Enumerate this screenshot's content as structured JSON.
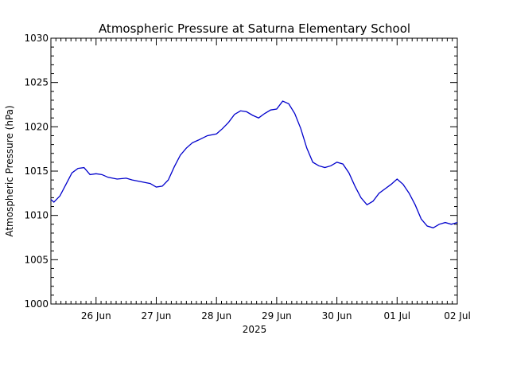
{
  "chart_data": {
    "type": "line",
    "title": "Atmospheric Pressure at Saturna Elementary School",
    "ylabel": "Atmospheric Pressure (hPa)",
    "xlabel": "2025",
    "ylim": [
      1000,
      1030
    ],
    "xlim_days": [
      -0.75,
      6.0
    ],
    "y_ticks": [
      1000,
      1005,
      1010,
      1015,
      1020,
      1025,
      1030
    ],
    "x_ticks": [
      {
        "day": 0,
        "label": "26 Jun"
      },
      {
        "day": 1,
        "label": "27 Jun"
      },
      {
        "day": 2,
        "label": "28 Jun"
      },
      {
        "day": 3,
        "label": "29 Jun"
      },
      {
        "day": 4,
        "label": "30 Jun"
      },
      {
        "day": 5,
        "label": "01 Jul"
      },
      {
        "day": 6,
        "label": "02 Jul"
      }
    ],
    "grid": false,
    "colors": {
      "line": "#0000cc",
      "axes": "#000000"
    },
    "series": [
      {
        "name": "",
        "x": [
          -0.75,
          -0.7,
          -0.6,
          -0.5,
          -0.4,
          -0.3,
          -0.2,
          -0.1,
          0.0,
          0.1,
          0.2,
          0.35,
          0.5,
          0.6,
          0.75,
          0.9,
          1.0,
          1.1,
          1.2,
          1.3,
          1.4,
          1.5,
          1.6,
          1.7,
          1.85,
          2.0,
          2.1,
          2.2,
          2.3,
          2.4,
          2.5,
          2.6,
          2.7,
          2.8,
          2.9,
          3.0,
          3.1,
          3.2,
          3.3,
          3.4,
          3.5,
          3.6,
          3.7,
          3.8,
          3.9,
          4.0,
          4.1,
          4.2,
          4.3,
          4.4,
          4.5,
          4.6,
          4.7,
          4.8,
          4.9,
          5.0,
          5.1,
          5.2,
          5.3,
          5.4,
          5.5,
          5.6,
          5.7,
          5.8,
          5.9,
          6.0
        ],
        "values": [
          1011.8,
          1011.5,
          1012.2,
          1013.5,
          1014.8,
          1015.3,
          1015.4,
          1014.6,
          1014.7,
          1014.6,
          1014.3,
          1014.1,
          1014.2,
          1014.0,
          1013.8,
          1013.6,
          1013.2,
          1013.3,
          1014.0,
          1015.5,
          1016.8,
          1017.6,
          1018.2,
          1018.5,
          1019.0,
          1019.2,
          1019.8,
          1020.5,
          1021.4,
          1021.8,
          1021.7,
          1021.3,
          1021.0,
          1021.5,
          1021.9,
          1022.0,
          1022.9,
          1022.6,
          1021.5,
          1019.8,
          1017.6,
          1016.0,
          1015.6,
          1015.4,
          1015.6,
          1016.0,
          1015.8,
          1014.8,
          1013.3,
          1012.0,
          1011.2,
          1011.6,
          1012.5,
          1013.0,
          1013.5,
          1014.1,
          1013.5,
          1012.5,
          1011.2,
          1009.6,
          1008.8,
          1008.6,
          1009.0,
          1009.2,
          1009.0,
          1009.2
        ]
      }
    ]
  }
}
